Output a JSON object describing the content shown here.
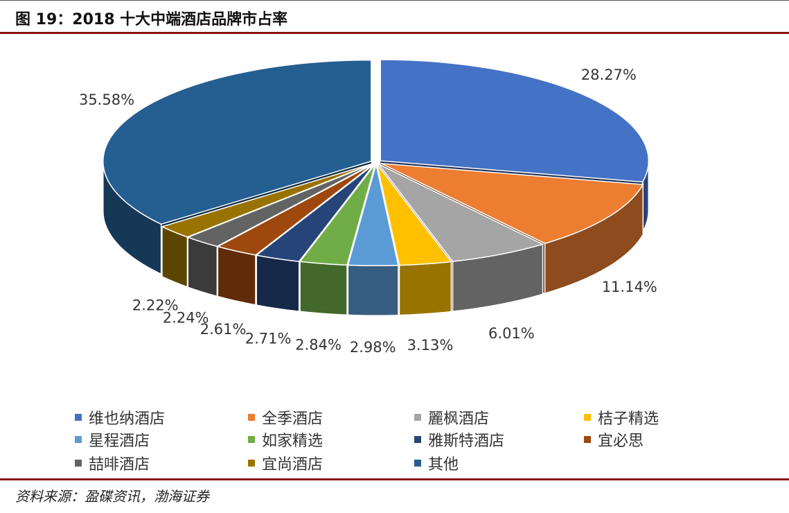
{
  "figure": {
    "title": "图 19：2018 十大中端酒店品牌市占率",
    "source": "资料来源：盈碟资讯，渤海证券"
  },
  "chart_data": {
    "type": "pie",
    "title": "",
    "categories": [
      "维也纳酒店",
      "全季酒店",
      "麗枫酒店",
      "桔子精选",
      "星程酒店",
      "如家精选",
      "雅斯特酒店",
      "宜必思",
      "喆啡酒店",
      "宜尚酒店",
      "其他"
    ],
    "values": [
      28.27,
      11.14,
      6.01,
      3.13,
      2.98,
      2.84,
      2.71,
      2.61,
      2.24,
      2.22,
      35.58
    ],
    "value_labels": [
      "28.27%",
      "11.14%",
      "6.01%",
      "3.13%",
      "2.98%",
      "2.84%",
      "2.71%",
      "2.61%",
      "2.24%",
      "2.22%",
      "35.58%"
    ],
    "colors": [
      "#4472c4",
      "#ed7d31",
      "#a5a5a5",
      "#ffc000",
      "#5b9bd5",
      "#70ad47",
      "#264478",
      "#9e480e",
      "#636363",
      "#997300",
      "#255e91"
    ],
    "style": "3d-exploded",
    "legend_position": "bottom"
  }
}
